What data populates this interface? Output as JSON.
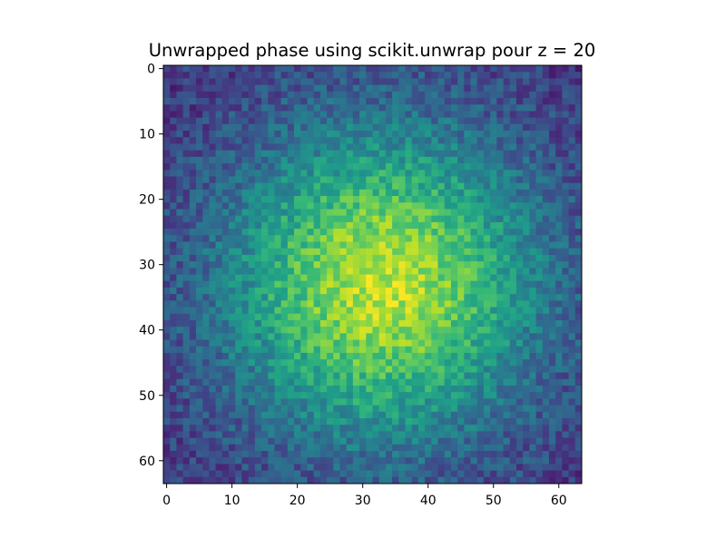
{
  "figure": {
    "title": "Unwrapped phase using scikit.unwrap pour z = 20"
  },
  "chart_data": {
    "type": "heatmap",
    "title": "Unwrapped phase using scikit.unwrap pour z = 20",
    "xlabel": "",
    "ylabel": "",
    "colormap": "viridis",
    "colorbar": false,
    "grid": false,
    "legend": "none",
    "n_rows": 64,
    "n_cols": 64,
    "xlim": [
      -0.5,
      63.5
    ],
    "ylim": [
      63.5,
      -0.5
    ],
    "y_axis_inverted": true,
    "x_ticks": [
      0,
      10,
      20,
      30,
      40,
      50,
      60
    ],
    "x_tick_labels": [
      "0",
      "10",
      "20",
      "30",
      "40",
      "50",
      "60"
    ],
    "y_ticks": [
      0,
      10,
      20,
      30,
      40,
      50,
      60
    ],
    "y_tick_labels": [
      "0",
      "10",
      "20",
      "30",
      "40",
      "50",
      "60"
    ],
    "value_range": [
      0.0,
      1.0
    ],
    "pattern": "noisy 2D Gaussian bump, brightest near column 33, row 33; darkest at the four corners",
    "peak": {
      "col": 33,
      "row": 33,
      "approx_value": 0.95
    },
    "spread_cols": 17,
    "spread_rows": 17,
    "edge_value": 0.2,
    "noise_amplitude": 0.12,
    "colormap_stops": [
      "#440154",
      "#482878",
      "#3e4989",
      "#31688e",
      "#26828e",
      "#1f9e89",
      "#35b779",
      "#6ece58",
      "#b5de2b",
      "#fde725"
    ]
  }
}
